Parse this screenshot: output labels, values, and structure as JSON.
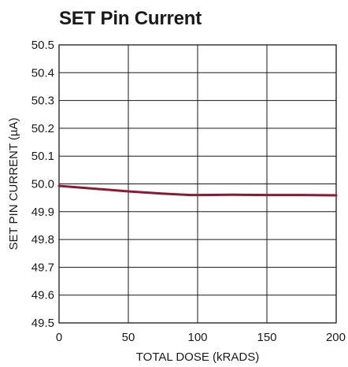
{
  "chart_data": {
    "type": "line",
    "title": "SET Pin Current",
    "xlabel": "TOTAL DOSE (kRADS)",
    "ylabel": "SET PIN CURRENT (µA)",
    "xlim": [
      0,
      200
    ],
    "ylim": [
      49.5,
      50.5
    ],
    "x_ticks": [
      "0",
      "50",
      "100",
      "150",
      "200"
    ],
    "y_ticks": [
      "50.5",
      "50.4",
      "50.3",
      "50.2",
      "50.1",
      "50.0",
      "49.9",
      "49.8",
      "49.7",
      "49.6",
      "49.5"
    ],
    "grid": true,
    "series": [
      {
        "color": "#8b1a33",
        "x": [
          0,
          25,
          50,
          75,
          95,
          100,
          125,
          150,
          175,
          200
        ],
        "y": [
          49.993,
          49.983,
          49.973,
          49.965,
          49.96,
          49.96,
          49.961,
          49.96,
          49.96,
          49.959
        ]
      }
    ]
  }
}
